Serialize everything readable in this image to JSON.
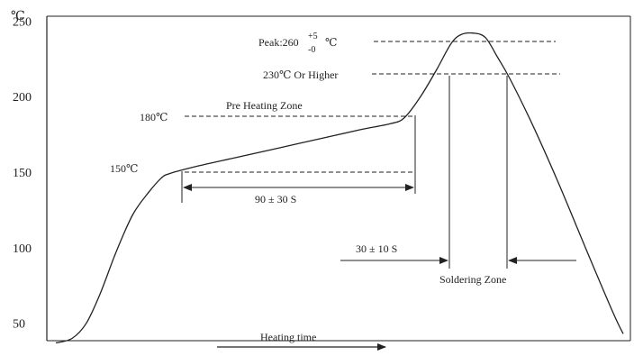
{
  "chart_data": {
    "type": "line",
    "title": "",
    "xlabel": "Heating time",
    "ylabel": "",
    "y_unit": "℃",
    "ylim": [
      35,
      255
    ],
    "y_ticks": [
      50,
      100,
      150,
      200,
      250
    ],
    "series": [
      {
        "values": [
          [
            0,
            37
          ],
          [
            8,
            40
          ],
          [
            15,
            50
          ],
          [
            22,
            70
          ],
          [
            30,
            98
          ],
          [
            38,
            122
          ],
          [
            46,
            137
          ],
          [
            52,
            146
          ],
          [
            56,
            149
          ],
          [
            70,
            154
          ],
          [
            90,
            160
          ],
          [
            110,
            166
          ],
          [
            130,
            172
          ],
          [
            150,
            178
          ],
          [
            165,
            182
          ],
          [
            172,
            186
          ],
          [
            180,
            200
          ],
          [
            188,
            218
          ],
          [
            195,
            235
          ],
          [
            200,
            241
          ],
          [
            206,
            242
          ],
          [
            212,
            239
          ],
          [
            218,
            226
          ],
          [
            224,
            212
          ],
          [
            235,
            182
          ],
          [
            248,
            143
          ],
          [
            262,
            98
          ],
          [
            275,
            57
          ],
          [
            280,
            43
          ]
        ]
      }
    ],
    "annotations": {
      "peak": {
        "prefix": "Peak:260",
        "sup": "+5",
        "sub": "-0",
        "unit": "℃",
        "value": 260
      },
      "above_230": {
        "label": "230℃ Or Higher",
        "value": 230
      },
      "pre_heat": {
        "label": "Pre Heating Zone",
        "value": 180
      },
      "level_180": {
        "label": "180℃",
        "value": 180
      },
      "level_150": {
        "label": "150℃",
        "value": 150
      },
      "preheat_duration": {
        "label": "90 ± 30 S",
        "x_start": 56,
        "x_end": 172
      },
      "solder_duration": {
        "label": "30 ± 10 S",
        "x_start": 190,
        "x_end": 219
      },
      "solder_zone": {
        "label": "Soldering Zone"
      }
    }
  }
}
